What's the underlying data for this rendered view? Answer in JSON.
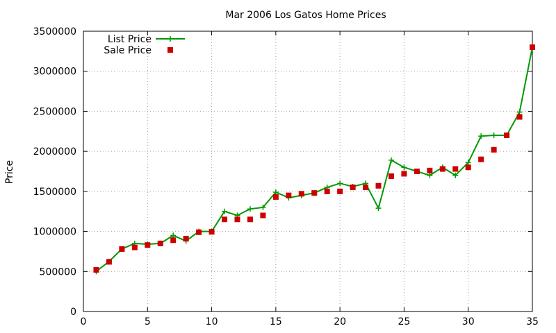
{
  "chart_data": {
    "type": "line",
    "title": "Mar 2006 Los Gatos Home Prices",
    "xlabel": "",
    "ylabel": "Price",
    "xlim": [
      0,
      35
    ],
    "ylim": [
      0,
      3500000
    ],
    "x_ticks": [
      0,
      5,
      10,
      15,
      20,
      25,
      30,
      35
    ],
    "y_ticks": [
      0,
      500000,
      1000000,
      1500000,
      2000000,
      2500000,
      3000000,
      3500000
    ],
    "x_tick_labels": [
      "0",
      "5",
      "10",
      "15",
      "20",
      "25",
      "30",
      "35"
    ],
    "y_tick_labels": [
      "0",
      "500000",
      "1000000",
      "1500000",
      "2000000",
      "2500000",
      "3000000",
      "3500000"
    ],
    "grid": true,
    "legend_position": "top-left",
    "x": [
      1,
      2,
      3,
      4,
      5,
      6,
      7,
      8,
      9,
      10,
      11,
      12,
      13,
      14,
      15,
      16,
      17,
      18,
      19,
      20,
      21,
      22,
      23,
      24,
      25,
      26,
      27,
      28,
      29,
      30,
      31,
      32,
      33,
      34,
      35
    ],
    "series": [
      {
        "name": "List Price",
        "style": "linespoints",
        "marker": "plus",
        "color": "#009900",
        "values": [
          500000,
          625000,
          780000,
          850000,
          840000,
          850000,
          950000,
          880000,
          1000000,
          1000000,
          1250000,
          1200000,
          1280000,
          1300000,
          1490000,
          1420000,
          1450000,
          1480000,
          1550000,
          1600000,
          1560000,
          1600000,
          1290000,
          1890000,
          1800000,
          1750000,
          1700000,
          1800000,
          1700000,
          1860000,
          2190000,
          2200000,
          2200000,
          2490000,
          3300000
        ]
      },
      {
        "name": "Sale Price",
        "style": "points",
        "marker": "square",
        "color": "#cc0000",
        "values": [
          520000,
          620000,
          780000,
          800000,
          830000,
          850000,
          890000,
          910000,
          990000,
          995000,
          1150000,
          1150000,
          1150000,
          1200000,
          1430000,
          1450000,
          1470000,
          1480000,
          1500000,
          1500000,
          1550000,
          1550000,
          1570000,
          1690000,
          1720000,
          1750000,
          1760000,
          1780000,
          1780000,
          1800000,
          1900000,
          2020000,
          2200000,
          2430000,
          3300000
        ]
      }
    ]
  }
}
